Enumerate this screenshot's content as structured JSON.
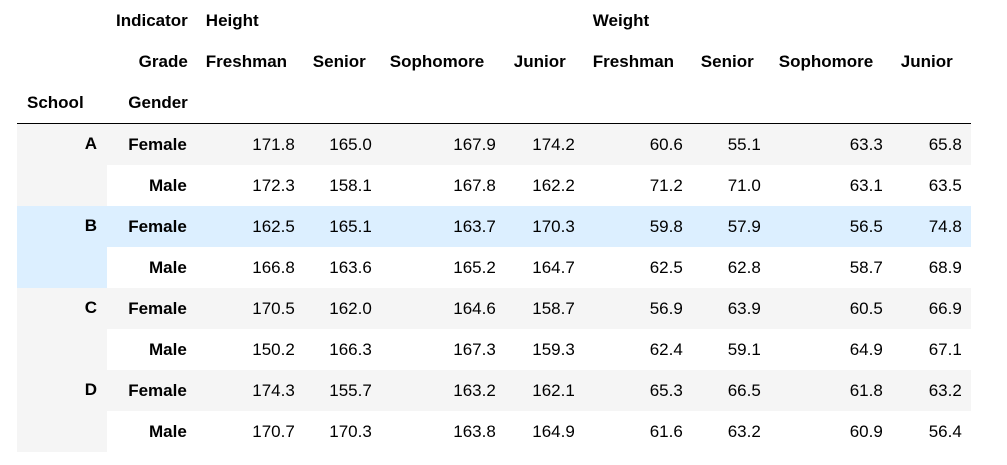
{
  "header": {
    "level0_name": "Indicator",
    "level1_name": "Grade",
    "level2_name": "Gender",
    "index_name": "School",
    "groups": [
      "Height",
      "Weight"
    ],
    "grades": [
      "Freshman",
      "Senior",
      "Sophomore",
      "Junior"
    ]
  },
  "highlight_row": 2,
  "rows": [
    {
      "school": "A",
      "gender": "Female",
      "values": [
        "171.8",
        "165.0",
        "167.9",
        "174.2",
        "60.6",
        "55.1",
        "63.3",
        "65.8"
      ]
    },
    {
      "school": "",
      "gender": "Male",
      "values": [
        "172.3",
        "158.1",
        "167.8",
        "162.2",
        "71.2",
        "71.0",
        "63.1",
        "63.5"
      ]
    },
    {
      "school": "B",
      "gender": "Female",
      "values": [
        "162.5",
        "165.1",
        "163.7",
        "170.3",
        "59.8",
        "57.9",
        "56.5",
        "74.8"
      ]
    },
    {
      "school": "",
      "gender": "Male",
      "values": [
        "166.8",
        "163.6",
        "165.2",
        "164.7",
        "62.5",
        "62.8",
        "58.7",
        "68.9"
      ]
    },
    {
      "school": "C",
      "gender": "Female",
      "values": [
        "170.5",
        "162.0",
        "164.6",
        "158.7",
        "56.9",
        "63.9",
        "60.5",
        "66.9"
      ]
    },
    {
      "school": "",
      "gender": "Male",
      "values": [
        "150.2",
        "166.3",
        "167.3",
        "159.3",
        "62.4",
        "59.1",
        "64.9",
        "67.1"
      ]
    },
    {
      "school": "D",
      "gender": "Female",
      "values": [
        "174.3",
        "155.7",
        "163.2",
        "162.1",
        "65.3",
        "66.5",
        "61.8",
        "63.2"
      ]
    },
    {
      "school": "",
      "gender": "Male",
      "values": [
        "170.7",
        "170.3",
        "163.8",
        "164.9",
        "61.6",
        "63.2",
        "60.9",
        "56.4"
      ]
    }
  ],
  "colors": {
    "odd_row": "#f5f5f5",
    "hover_row": "#dcefff",
    "rule": "#000000"
  }
}
